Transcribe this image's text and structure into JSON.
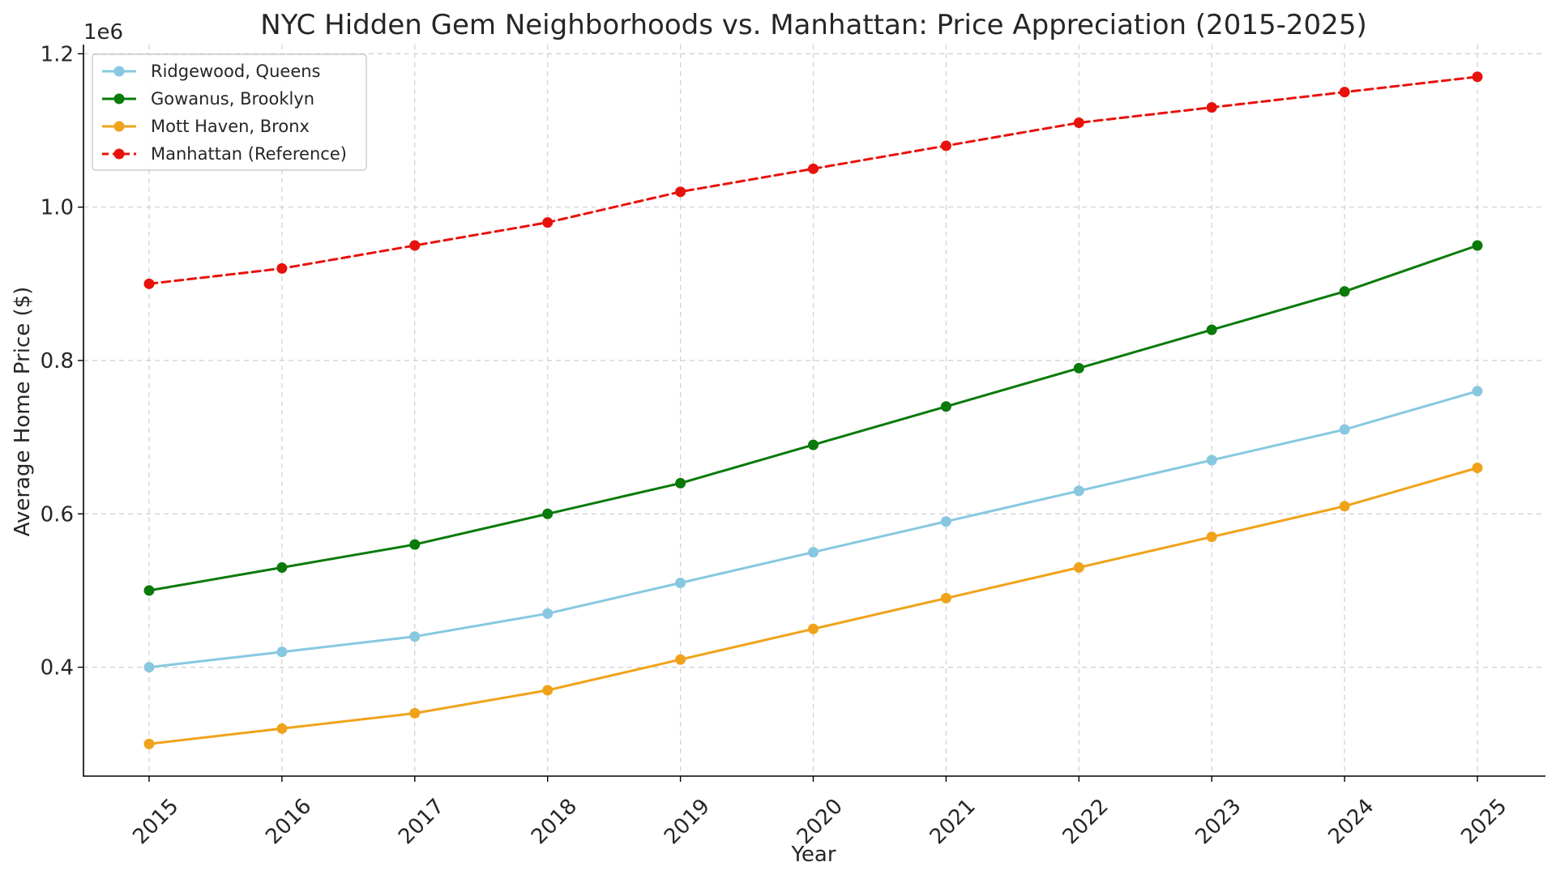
{
  "chart_data": {
    "type": "line",
    "title": "NYC Hidden Gem Neighborhoods vs. Manhattan: Price Appreciation (2015-2025)",
    "xlabel": "Year",
    "ylabel": "Average Home Price ($)",
    "y_scale_label": "1e6",
    "x": [
      "2015",
      "2016",
      "2017",
      "2018",
      "2019",
      "2020",
      "2021",
      "2022",
      "2023",
      "2024",
      "2025"
    ],
    "y_ticks": [
      0.4,
      0.6,
      0.8,
      1.0,
      1.2
    ],
    "y_tick_labels": [
      "0.4",
      "0.6",
      "0.8",
      "1.0",
      "1.2"
    ],
    "ylim": [
      258000,
      1212000
    ],
    "grid": true,
    "legend_position": "upper-left",
    "series": [
      {
        "name": "Ridgewood, Queens",
        "color": "#87c8e0",
        "line_style": "solid",
        "values": [
          400000,
          420000,
          440000,
          470000,
          510000,
          550000,
          590000,
          630000,
          670000,
          710000,
          760000
        ]
      },
      {
        "name": "Gowanus, Brooklyn",
        "color": "#0a7a0a",
        "line_style": "solid",
        "values": [
          500000,
          530000,
          560000,
          600000,
          640000,
          690000,
          740000,
          790000,
          840000,
          890000,
          950000
        ]
      },
      {
        "name": "Mott Haven, Bronx",
        "color": "#f0a31a",
        "line_style": "solid",
        "values": [
          300000,
          320000,
          340000,
          370000,
          410000,
          450000,
          490000,
          530000,
          570000,
          610000,
          660000
        ]
      },
      {
        "name": "Manhattan (Reference)",
        "color": "#e8120c",
        "line_style": "dashed",
        "values": [
          900000,
          920000,
          950000,
          980000,
          1020000,
          1050000,
          1080000,
          1110000,
          1130000,
          1150000,
          1170000
        ]
      }
    ]
  }
}
